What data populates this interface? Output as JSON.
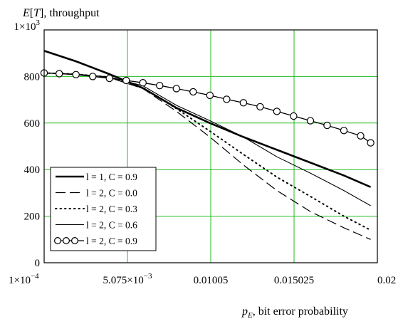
{
  "chart_data": {
    "type": "line",
    "ylabel_parts": [
      "E",
      "[",
      "T",
      "], throughput"
    ],
    "xlabel_parts": [
      "p",
      "E",
      ", bit error probability"
    ],
    "x_ticks": [
      {
        "value": 0.0001,
        "label": "1×10",
        "sup": "−4"
      },
      {
        "value": 0.005075,
        "label": "5.075×10",
        "sup": "−3"
      },
      {
        "value": 0.01005,
        "label": "0.01005",
        "sup": ""
      },
      {
        "value": 0.015025,
        "label": "0.015025",
        "sup": ""
      },
      {
        "value": 0.02,
        "label": "0.02",
        "sup": ""
      }
    ],
    "y_ticks": [
      {
        "value": 0,
        "label": "0",
        "sup": ""
      },
      {
        "value": 200,
        "label": "200",
        "sup": ""
      },
      {
        "value": 400,
        "label": "400",
        "sup": ""
      },
      {
        "value": 600,
        "label": "600",
        "sup": ""
      },
      {
        "value": 800,
        "label": "800",
        "sup": ""
      },
      {
        "value": 1000,
        "label": "1×10",
        "sup": "3"
      }
    ],
    "xlim": [
      0.0001,
      0.02
    ],
    "ylim": [
      0,
      1000
    ],
    "grid": true,
    "legend_position": "bottom-left",
    "series": [
      {
        "name": "l = 1, C = 0.9",
        "style": "thick",
        "x": [
          0.0001,
          0.002,
          0.004,
          0.006,
          0.008,
          0.01,
          0.012,
          0.014,
          0.016,
          0.018,
          0.0196
        ],
        "y": [
          910,
          865,
          810,
          750,
          665,
          600,
          540,
          485,
          430,
          375,
          325
        ]
      },
      {
        "name": "l = 2, C = 0.0",
        "style": "dashed",
        "x": [
          0.0001,
          0.002,
          0.004,
          0.006,
          0.008,
          0.01,
          0.012,
          0.014,
          0.016,
          0.018,
          0.0196
        ],
        "y": [
          815,
          810,
          795,
          748,
          650,
          540,
          420,
          310,
          220,
          150,
          100
        ]
      },
      {
        "name": "l = 2, C = 0.3",
        "style": "dotted",
        "x": [
          0.0001,
          0.002,
          0.004,
          0.006,
          0.008,
          0.01,
          0.012,
          0.014,
          0.016,
          0.018,
          0.0196
        ],
        "y": [
          815,
          810,
          797,
          752,
          662,
          565,
          465,
          368,
          285,
          200,
          140
        ]
      },
      {
        "name": "l = 2, C = 0.6",
        "style": "thin",
        "x": [
          0.0001,
          0.002,
          0.004,
          0.006,
          0.008,
          0.01,
          0.012,
          0.014,
          0.016,
          0.018,
          0.0196
        ],
        "y": [
          815,
          810,
          798,
          760,
          676,
          610,
          540,
          455,
          385,
          310,
          245
        ]
      },
      {
        "name": "l = 2, C = 0.9",
        "style": "circles",
        "x": [
          0.0001,
          0.001,
          0.002,
          0.003,
          0.004,
          0.005,
          0.006,
          0.007,
          0.008,
          0.009,
          0.01,
          0.011,
          0.012,
          0.013,
          0.014,
          0.015,
          0.016,
          0.017,
          0.018,
          0.019,
          0.0196
        ],
        "y": [
          815,
          812,
          808,
          800,
          792,
          783,
          773,
          761,
          748,
          734,
          719,
          702,
          687,
          670,
          650,
          630,
          610,
          590,
          568,
          545,
          515
        ]
      }
    ]
  }
}
